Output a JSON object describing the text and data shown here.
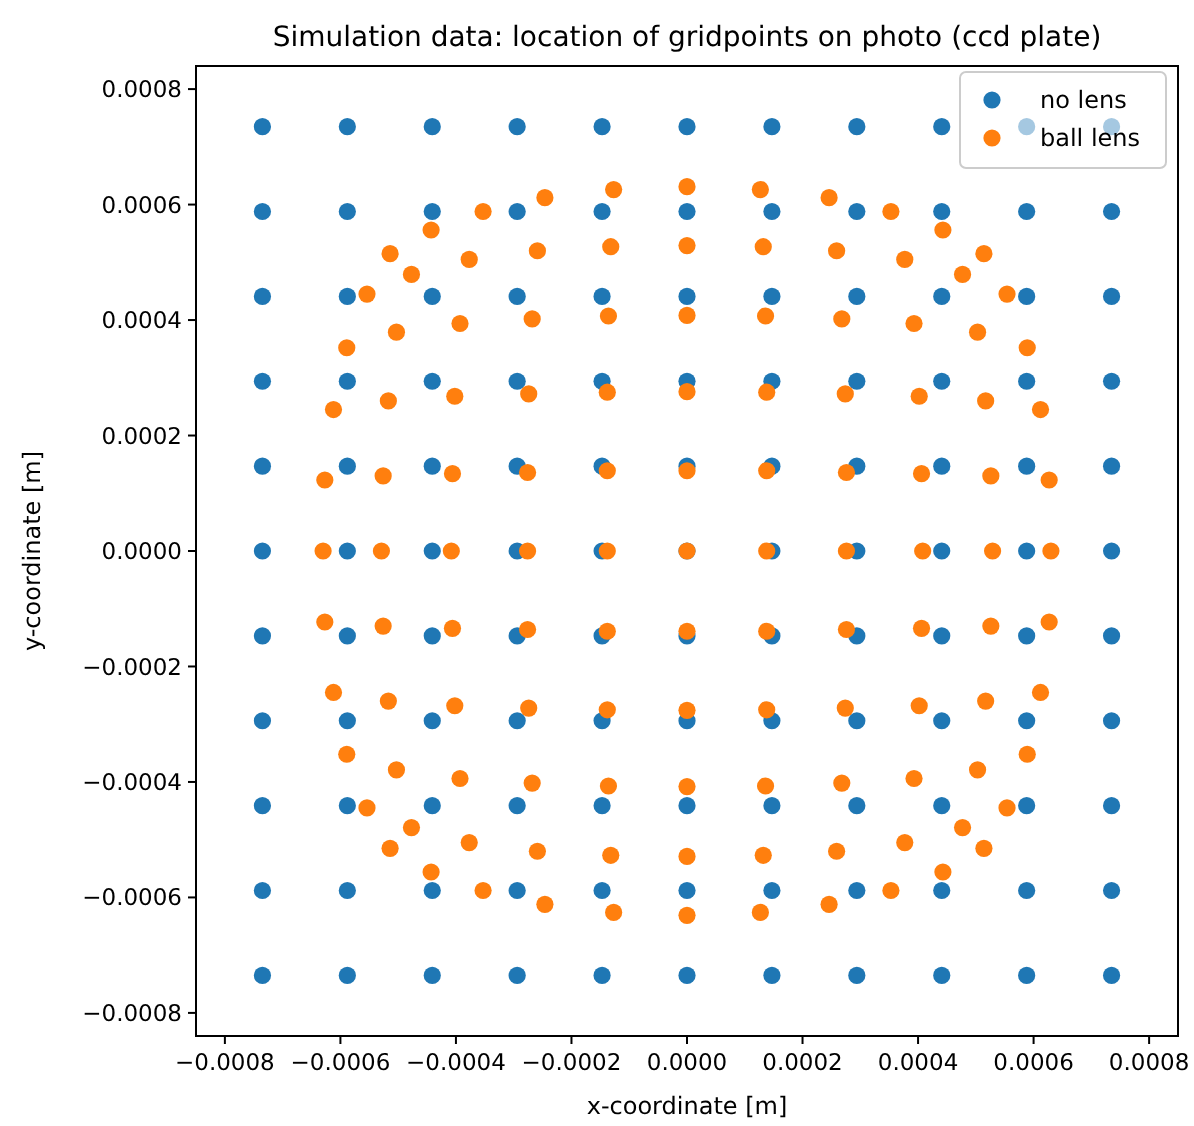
{
  "chart_data": {
    "type": "scatter",
    "title": "Simulation data: location of gridpoints on photo (ccd plate)",
    "xlabel": "x-coordinate [m]",
    "ylabel": "y-coordinate [m]",
    "xlim": [
      -0.00085,
      0.00085
    ],
    "ylim": [
      -0.00084,
      0.00084
    ],
    "xticks": [
      {
        "value": -0.0008,
        "label": "−0.0008"
      },
      {
        "value": -0.0006,
        "label": "−0.0006"
      },
      {
        "value": -0.0004,
        "label": "−0.0004"
      },
      {
        "value": -0.0002,
        "label": "−0.0002"
      },
      {
        "value": 0,
        "label": "0.0000"
      },
      {
        "value": 0.0002,
        "label": "0.0002"
      },
      {
        "value": 0.0004,
        "label": "0.0004"
      },
      {
        "value": 0.0006,
        "label": "0.0006"
      },
      {
        "value": 0.0008,
        "label": "0.0008"
      }
    ],
    "yticks": [
      {
        "value": -0.0008,
        "label": "−0.0008"
      },
      {
        "value": -0.0006,
        "label": "−0.0006"
      },
      {
        "value": -0.0004,
        "label": "−0.0004"
      },
      {
        "value": -0.0002,
        "label": "−0.0002"
      },
      {
        "value": 0,
        "label": "0.0000"
      },
      {
        "value": 0.0002,
        "label": "0.0002"
      },
      {
        "value": 0.0004,
        "label": "0.0004"
      },
      {
        "value": 0.0006,
        "label": "0.0006"
      },
      {
        "value": 0.0008,
        "label": "0.0008"
      }
    ],
    "legend": "top right",
    "marker": "circle",
    "series": [
      {
        "name": "no lens",
        "color": "#1f77b4",
        "x": [
          -0.000735,
          -0.000588,
          -0.000441,
          -0.000294,
          -0.000147,
          0,
          0.000147,
          0.000294,
          0.000441,
          0.000588,
          0.000735,
          -0.000735,
          -0.000588,
          -0.000441,
          -0.000294,
          -0.000147,
          0,
          0.000147,
          0.000294,
          0.000441,
          0.000588,
          0.000735,
          -0.000735,
          -0.000588,
          -0.000441,
          -0.000294,
          -0.000147,
          0,
          0.000147,
          0.000294,
          0.000441,
          0.000588,
          0.000735,
          -0.000735,
          -0.000588,
          -0.000441,
          -0.000294,
          -0.000147,
          0,
          0.000147,
          0.000294,
          0.000441,
          0.000588,
          0.000735,
          -0.000735,
          -0.000588,
          -0.000441,
          -0.000294,
          -0.000147,
          0,
          0.000147,
          0.000294,
          0.000441,
          0.000588,
          0.000735,
          -0.000735,
          -0.000588,
          -0.000441,
          -0.000294,
          -0.000147,
          0,
          0.000147,
          0.000294,
          0.000441,
          0.000588,
          0.000735,
          -0.000735,
          -0.000588,
          -0.000441,
          -0.000294,
          -0.000147,
          0,
          0.000147,
          0.000294,
          0.000441,
          0.000588,
          0.000735,
          -0.000735,
          -0.000588,
          -0.000441,
          -0.000294,
          -0.000147,
          0,
          0.000147,
          0.000294,
          0.000441,
          0.000588,
          0.000735,
          -0.000735,
          -0.000588,
          -0.000441,
          -0.000294,
          -0.000147,
          0,
          0.000147,
          0.000294,
          0.000441,
          0.000588,
          0.000735,
          -0.000735,
          -0.000588,
          -0.000441,
          -0.000294,
          -0.000147,
          0,
          0.000147,
          0.000294,
          0.000441,
          0.000588,
          0.000735,
          -0.000735,
          -0.000588,
          -0.000441,
          -0.000294,
          -0.000147,
          0,
          0.000147,
          0.000294,
          0.000441,
          0.000588,
          0.000735
        ],
        "values": [
          0.000735,
          0.000735,
          0.000735,
          0.000735,
          0.000735,
          0.000735,
          0.000735,
          0.000735,
          0.000735,
          0.000735,
          0.000735,
          0.000588,
          0.000588,
          0.000588,
          0.000588,
          0.000588,
          0.000588,
          0.000588,
          0.000588,
          0.000588,
          0.000588,
          0.000588,
          0.000441,
          0.000441,
          0.000441,
          0.000441,
          0.000441,
          0.000441,
          0.000441,
          0.000441,
          0.000441,
          0.000441,
          0.000441,
          0.000294,
          0.000294,
          0.000294,
          0.000294,
          0.000294,
          0.000294,
          0.000294,
          0.000294,
          0.000294,
          0.000294,
          0.000294,
          0.000147,
          0.000147,
          0.000147,
          0.000147,
          0.000147,
          0.000147,
          0.000147,
          0.000147,
          0.000147,
          0.000147,
          0.000147,
          0,
          0,
          0,
          0,
          0,
          0,
          0,
          0,
          0,
          0,
          0,
          -0.000147,
          -0.000147,
          -0.000147,
          -0.000147,
          -0.000147,
          -0.000147,
          -0.000147,
          -0.000147,
          -0.000147,
          -0.000147,
          -0.000147,
          -0.000294,
          -0.000294,
          -0.000294,
          -0.000294,
          -0.000294,
          -0.000294,
          -0.000294,
          -0.000294,
          -0.000294,
          -0.000294,
          -0.000294,
          -0.000441,
          -0.000441,
          -0.000441,
          -0.000441,
          -0.000441,
          -0.000441,
          -0.000441,
          -0.000441,
          -0.000441,
          -0.000441,
          -0.000441,
          -0.000588,
          -0.000588,
          -0.000588,
          -0.000588,
          -0.000588,
          -0.000588,
          -0.000588,
          -0.000588,
          -0.000588,
          -0.000588,
          -0.000588,
          -0.000735,
          -0.000735,
          -0.000735,
          -0.000735,
          -0.000735,
          -0.000735,
          -0.000735,
          -0.000735,
          -0.000735,
          -0.000735,
          -0.000735
        ]
      },
      {
        "name": "ball lens",
        "color": "#ff7f0e",
        "x": [
          -0.000514,
          -0.000443,
          -0.000353,
          -0.000246,
          -0.000127,
          0,
          0.000127,
          0.000246,
          0.000353,
          0.000443,
          0.000514,
          -0.000554,
          -0.000477,
          -0.000377,
          -0.000259,
          -0.000132,
          0,
          0.000132,
          0.000259,
          0.000377,
          0.000477,
          0.000554,
          -0.000589,
          -0.000503,
          -0.000393,
          -0.000268,
          -0.000136,
          0,
          0.000136,
          0.000268,
          0.000393,
          0.000503,
          0.000589,
          -0.000612,
          -0.000517,
          -0.000402,
          -0.000274,
          -0.000138,
          0,
          0.000138,
          0.000274,
          0.000402,
          0.000517,
          0.000612,
          -0.000627,
          -0.000526,
          -0.000406,
          -0.000276,
          -0.000138,
          0,
          0.000138,
          0.000276,
          0.000406,
          0.000526,
          0.000627,
          -0.00063,
          -0.000529,
          -0.000408,
          -0.000276,
          -0.000138,
          0,
          0.000138,
          0.000276,
          0.000408,
          0.000529,
          0.00063,
          -0.000627,
          -0.000526,
          -0.000406,
          -0.000276,
          -0.000138,
          0,
          0.000138,
          0.000276,
          0.000406,
          0.000526,
          0.000627,
          -0.000612,
          -0.000517,
          -0.000402,
          -0.000274,
          -0.000138,
          0,
          0.000138,
          0.000274,
          0.000402,
          0.000517,
          0.000612,
          -0.000589,
          -0.000503,
          -0.000393,
          -0.000268,
          -0.000136,
          0,
          0.000136,
          0.000268,
          0.000393,
          0.000503,
          0.000589,
          -0.000554,
          -0.000477,
          -0.000377,
          -0.000259,
          -0.000132,
          0,
          0.000132,
          0.000259,
          0.000377,
          0.000477,
          0.000554,
          -0.000514,
          -0.000443,
          -0.000353,
          -0.000246,
          -0.000127,
          0,
          0.000127,
          0.000246,
          0.000353,
          0.000443,
          0.000514
        ],
        "values": [
          0.000515,
          0.000556,
          0.000588,
          0.000612,
          0.000626,
          0.000631,
          0.000626,
          0.000612,
          0.000588,
          0.000556,
          0.000515,
          0.000445,
          0.000479,
          0.000505,
          0.00052,
          0.000527,
          0.000529,
          0.000527,
          0.00052,
          0.000505,
          0.000479,
          0.000445,
          0.000352,
          0.000379,
          0.000394,
          0.000402,
          0.000407,
          0.000408,
          0.000407,
          0.000402,
          0.000394,
          0.000379,
          0.000352,
          0.000245,
          0.00026,
          0.000268,
          0.000272,
          0.000275,
          0.000276,
          0.000275,
          0.000272,
          0.000268,
          0.00026,
          0.000245,
          0.000123,
          0.00013,
          0.000134,
          0.000136,
          0.000139,
          0.000139,
          0.000139,
          0.000136,
          0.000134,
          0.00013,
          0.000123,
          0,
          0,
          0,
          0,
          0,
          0,
          0,
          0,
          0,
          0,
          0,
          -0.000123,
          -0.00013,
          -0.000134,
          -0.000136,
          -0.000139,
          -0.000139,
          -0.000139,
          -0.000136,
          -0.000134,
          -0.00013,
          -0.000123,
          -0.000245,
          -0.00026,
          -0.000268,
          -0.000272,
          -0.000275,
          -0.000276,
          -0.000275,
          -0.000272,
          -0.000268,
          -0.00026,
          -0.000245,
          -0.000352,
          -0.000379,
          -0.000394,
          -0.000402,
          -0.000407,
          -0.000408,
          -0.000407,
          -0.000402,
          -0.000394,
          -0.000379,
          -0.000352,
          -0.000445,
          -0.000479,
          -0.000505,
          -0.00052,
          -0.000527,
          -0.000529,
          -0.000527,
          -0.00052,
          -0.000505,
          -0.000479,
          -0.000445,
          -0.000515,
          -0.000556,
          -0.000588,
          -0.000612,
          -0.000626,
          -0.000631,
          -0.000626,
          -0.000612,
          -0.000588,
          -0.000556,
          -0.000515
        ]
      }
    ]
  }
}
